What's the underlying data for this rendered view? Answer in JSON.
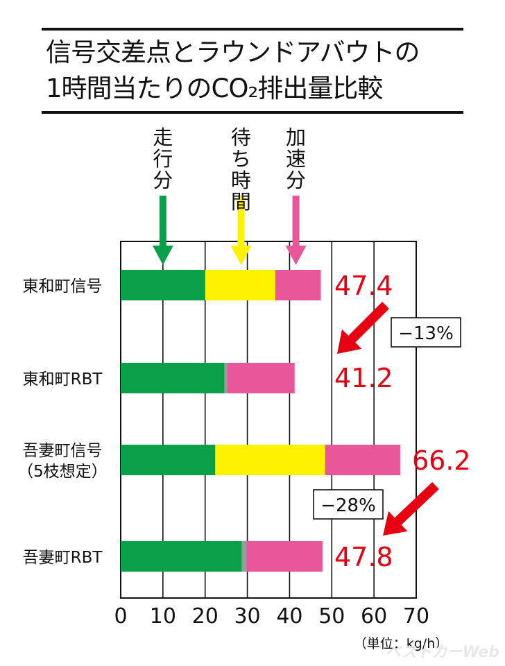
{
  "title": {
    "line1": "信号交差点とラウンドアバウトの",
    "line2": "1時間当たりのCO₂排出量比較"
  },
  "chart_data": {
    "type": "bar",
    "orientation": "horizontal",
    "stacked": true,
    "categories": [
      "東和町信号",
      "東和町RBT",
      "吾妻町信号（5枝想定）",
      "吾妻町RBT"
    ],
    "category_labels": [
      [
        "東和町信号"
      ],
      [
        "東和町RBT"
      ],
      [
        "吾妻町信号",
        "（5枝想定）"
      ],
      [
        "吾妻町RBT"
      ]
    ],
    "series": [
      {
        "name": "走行分",
        "color": "#0aa04a",
        "values": [
          20.0,
          24.6,
          22.4,
          28.7
        ]
      },
      {
        "name": "待ち時間",
        "color": "#fff200",
        "values": [
          16.6,
          0.6,
          26.0,
          1.2
        ]
      },
      {
        "name": "加速分",
        "color": "#e8579a",
        "values": [
          10.8,
          16.0,
          17.8,
          17.9
        ]
      }
    ],
    "totals": [
      47.4,
      41.2,
      66.2,
      47.8
    ],
    "total_labels": [
      "47.4",
      "41.2",
      "66.2",
      "47.8"
    ],
    "xlim": [
      0,
      70
    ],
    "xticks": [
      0,
      10,
      20,
      30,
      40,
      50,
      60,
      70
    ],
    "unit_label": "（単位：kg/h）",
    "grid": true,
    "legend_arrows": [
      {
        "label": "走行分",
        "color": "#0aa04a",
        "x": 10
      },
      {
        "label": "待ち時間",
        "color": "#fff200",
        "x": 28.5
      },
      {
        "label": "加速分",
        "color": "#e8579a",
        "x": 41.5
      }
    ],
    "annotations": [
      {
        "text": "−13%",
        "from_category": 0,
        "to_category": 1
      },
      {
        "text": "−28%",
        "from_category": 2,
        "to_category": 3
      }
    ]
  },
  "watermark": "ベストカーWeb"
}
